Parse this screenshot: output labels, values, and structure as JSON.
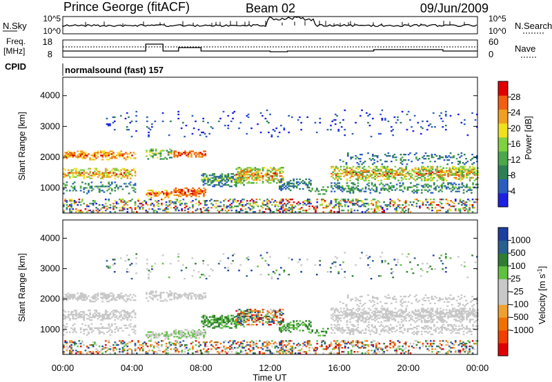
{
  "header": {
    "station": "Prince George (fitACF)",
    "beam": "Beam 02",
    "date": "09/Jun/2009"
  },
  "panels": {
    "nsky": {
      "label": "N.Sky",
      "ticks": [
        "10^5",
        "10^0"
      ],
      "right_label": "N.Search",
      "right_ticks": [
        "10^5",
        "10^0"
      ]
    },
    "freq": {
      "label_line1": "Freq.",
      "label_line2": "[MHz]",
      "ticks": [
        "18",
        "8"
      ],
      "right_label": "Nave",
      "right_ticks": [
        "60",
        "0"
      ]
    },
    "cpid": {
      "label": "CPID",
      "program": "normalsound (fast) 157"
    }
  },
  "colors": {
    "power": [
      "#2020e0",
      "#2a5fc0",
      "#2f7f55",
      "#4aa84a",
      "#80d040",
      "#f0e020",
      "#f0a020",
      "#f06010",
      "#e00000"
    ],
    "velocity": [
      "#e00000",
      "#f04000",
      "#f07000",
      "#f0a030",
      "#c8c8c8",
      "#c8c8c8",
      "#60c040",
      "#2e7d32",
      "#2a6090",
      "#1c3fa0"
    ]
  },
  "chart_data": [
    {
      "type": "heatmap",
      "ylabel": "Slant Range [km]",
      "xlabel": "",
      "yticks": [
        "1000",
        "2000",
        "3000",
        "4000"
      ],
      "ylim": [
        180,
        4600
      ],
      "xlim": [
        0,
        24
      ],
      "colorbar": {
        "label": "Power [dB]",
        "ticks": [
          "4",
          "8",
          "12",
          "16",
          "20",
          "24",
          "28"
        ],
        "range": [
          0,
          32
        ]
      }
    },
    {
      "type": "heatmap",
      "ylabel": "Slant Range [km]",
      "xlabel": "Time UT",
      "yticks": [
        "1000",
        "2000",
        "3000",
        "4000"
      ],
      "ylim": [
        180,
        4600
      ],
      "xlim": [
        0,
        24
      ],
      "xticks": [
        "00:00",
        "04:00",
        "08:00",
        "12:00",
        "16:00",
        "20:00",
        "00:00"
      ],
      "colorbar": {
        "label": "Velocity",
        "unit": "[m s",
        "unit_sup": "-1",
        "unit_close": "]",
        "ticks": [
          "1000",
          "500",
          "100",
          "25",
          "-25",
          "-100",
          "-500",
          "-1000"
        ]
      }
    }
  ]
}
